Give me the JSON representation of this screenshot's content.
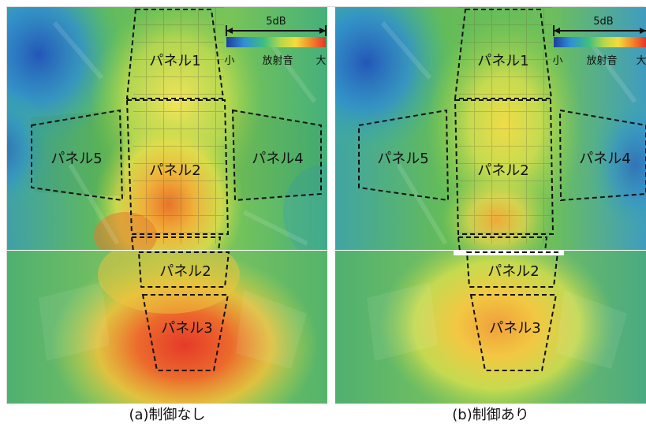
{
  "legend": {
    "span_label": "5dB",
    "low_label": "小",
    "title": "放射音",
    "high_label": "大"
  },
  "panel_labels": {
    "panel1": "パネル1",
    "panel2": "パネル2",
    "panel3": "パネル3",
    "panel4": "パネル4",
    "panel5": "パネル5"
  },
  "captions": {
    "without_control": "(a)制御なし",
    "with_control": "(b)制御あり"
  },
  "colors": {
    "colormap": [
      "#1f3d9e",
      "#2f8fd8",
      "#3fbf7f",
      "#b8d94a",
      "#f2dc3c",
      "#f08a2c",
      "#e8342a"
    ],
    "outline": "#111111"
  }
}
